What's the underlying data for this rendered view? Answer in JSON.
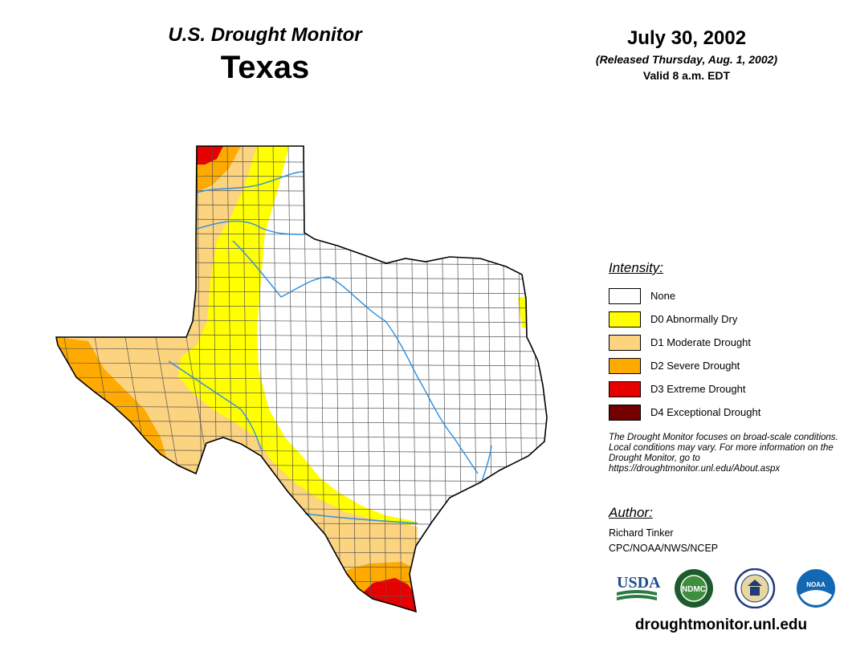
{
  "header": {
    "product_title": "U.S. Drought Monitor",
    "region_title": "Texas",
    "map_date": "July 30, 2002",
    "release_note": "(Released Thursday, Aug. 1, 2002)",
    "valid_time": "Valid 8 a.m. EDT"
  },
  "legend": {
    "title": "Intensity:",
    "items": [
      {
        "label": "None",
        "color": "#ffffff"
      },
      {
        "label": "D0 Abnormally Dry",
        "color": "#ffff00"
      },
      {
        "label": "D1 Moderate Drought",
        "color": "#fcd37f"
      },
      {
        "label": "D2 Severe Drought",
        "color": "#ffaa00"
      },
      {
        "label": "D3 Extreme Drought",
        "color": "#e60000"
      },
      {
        "label": "D4 Exceptional Drought",
        "color": "#730000"
      }
    ]
  },
  "disclaimer": "The Drought Monitor focuses on broad-scale conditions. Local conditions may vary. For more information on the Drought Monitor, go to https://droughtmonitor.unl.edu/About.aspx",
  "author": {
    "heading": "Author:",
    "name": "Richard Tinker",
    "org": "CPC/NOAA/NWS/NCEP"
  },
  "logos": {
    "usda_text": "USDA",
    "ndmc_text": "NDMC",
    "noaa_text": "NOAA",
    "icons": [
      "usda-logo-icon",
      "ndmc-logo-icon",
      "doc-seal-icon",
      "noaa-logo-icon"
    ]
  },
  "website": "droughtmonitor.unl.edu",
  "map_colors": {
    "none": "#ffffff",
    "d0": "#ffff00",
    "d1": "#fcd37f",
    "d2": "#ffaa00",
    "d3": "#e60000",
    "border": "#000000",
    "county_lines": "#555555",
    "rivers": "#2a8fe0"
  }
}
